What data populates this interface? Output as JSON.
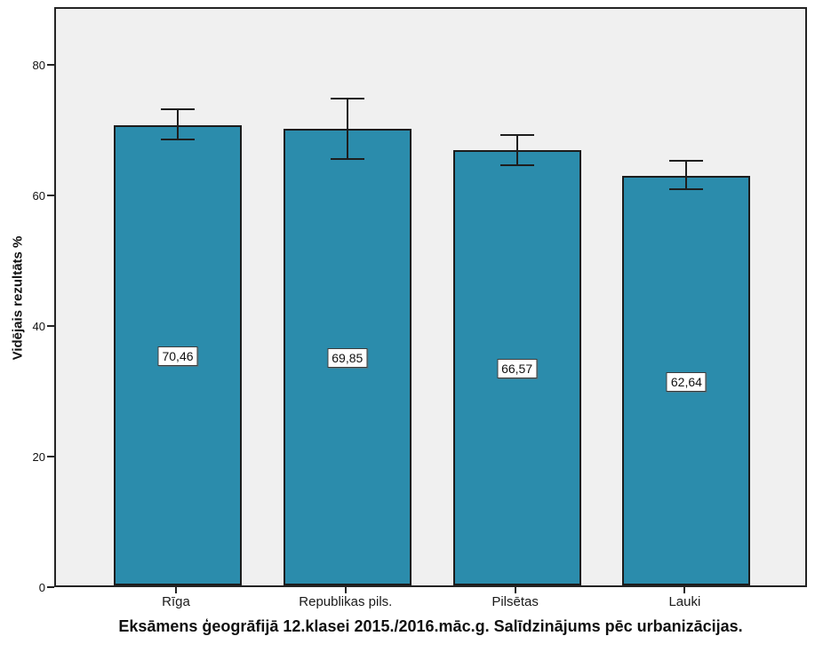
{
  "chart_data": {
    "type": "bar",
    "title": "Eksāmens ģeogrāfijā 12.klasei 2015./2016.māc.g. Salīdzinājums pēc urbanizācijas.",
    "ylabel": "Vidējais rezultāts %",
    "xlabel": "",
    "categories": [
      "Rīga",
      "Republikas pils.",
      "Pilsētas",
      "Lauki"
    ],
    "values": [
      70.46,
      69.85,
      66.57,
      62.64
    ],
    "value_labels": [
      "70,46",
      "69,85",
      "66,57",
      "62,64"
    ],
    "error_upper": [
      72.9,
      74.5,
      68.9,
      65.0
    ],
    "error_lower": [
      68.3,
      65.3,
      64.3,
      60.6
    ],
    "y_ticks": [
      0,
      20,
      40,
      60,
      80
    ],
    "y_tick_labels": [
      "0",
      "20",
      "40",
      "60",
      "80"
    ],
    "ylim": [
      0,
      88.8
    ],
    "grid": false,
    "legend": false,
    "bar_color": "#2b8cac",
    "bar_border_color": "#1c1c1c",
    "plot_background": "#f0f0f0",
    "page_background": "#ffffff",
    "error_bar_color": "#1e1e1e"
  }
}
